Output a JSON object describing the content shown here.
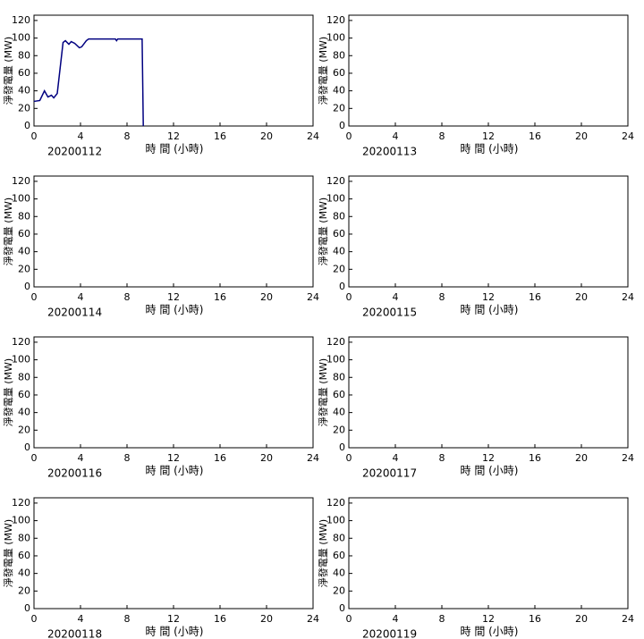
{
  "chart_data": [
    {
      "type": "line",
      "date": "20200112",
      "xlabel": "時 間 (小時)",
      "ylabel": "淨發電量 (MW)",
      "xlim": [
        0,
        24
      ],
      "xticks": [
        0,
        4,
        8,
        12,
        16,
        20,
        24
      ],
      "ylim": [
        0,
        126
      ],
      "yticks": [
        0,
        20,
        40,
        60,
        80,
        100,
        120
      ],
      "color": "#000080",
      "x": [
        0,
        0.5,
        0.9,
        1.2,
        1.5,
        1.7,
        2,
        2.5,
        2.7,
        3,
        3.2,
        3.5,
        3.9,
        4.1,
        4.5,
        4.7,
        7,
        7.1,
        7.2,
        9.3,
        9.4
      ],
      "values": [
        28,
        29,
        40,
        33,
        35,
        32,
        37,
        95,
        97,
        93,
        96,
        94,
        89,
        90,
        97,
        99,
        99,
        97,
        99,
        99,
        0
      ]
    },
    {
      "type": "line",
      "date": "20200113",
      "xlabel": "時 間 (小時)",
      "ylabel": "淨發電量 (MW)",
      "xlim": [
        0,
        24
      ],
      "xticks": [
        0,
        4,
        8,
        12,
        16,
        20,
        24
      ],
      "ylim": [
        0,
        126
      ],
      "yticks": [
        0,
        20,
        40,
        60,
        80,
        100,
        120
      ]
    },
    {
      "type": "line",
      "date": "20200114",
      "xlabel": "時 間 (小時)",
      "ylabel": "淨發電量 (MW)",
      "xlim": [
        0,
        24
      ],
      "xticks": [
        0,
        4,
        8,
        12,
        16,
        20,
        24
      ],
      "ylim": [
        0,
        126
      ],
      "yticks": [
        0,
        20,
        40,
        60,
        80,
        100,
        120
      ]
    },
    {
      "type": "line",
      "date": "20200115",
      "xlabel": "時 間 (小時)",
      "ylabel": "淨發電量 (MW)",
      "xlim": [
        0,
        24
      ],
      "xticks": [
        0,
        4,
        8,
        12,
        16,
        20,
        24
      ],
      "ylim": [
        0,
        126
      ],
      "yticks": [
        0,
        20,
        40,
        60,
        80,
        100,
        120
      ]
    },
    {
      "type": "line",
      "date": "20200116",
      "xlabel": "時 間 (小時)",
      "ylabel": "淨發電量 (MW)",
      "xlim": [
        0,
        24
      ],
      "xticks": [
        0,
        4,
        8,
        12,
        16,
        20,
        24
      ],
      "ylim": [
        0,
        126
      ],
      "yticks": [
        0,
        20,
        40,
        60,
        80,
        100,
        120
      ]
    },
    {
      "type": "line",
      "date": "20200117",
      "xlabel": "時 間 (小時)",
      "ylabel": "淨發電量 (MW)",
      "xlim": [
        0,
        24
      ],
      "xticks": [
        0,
        4,
        8,
        12,
        16,
        20,
        24
      ],
      "ylim": [
        0,
        126
      ],
      "yticks": [
        0,
        20,
        40,
        60,
        80,
        100,
        120
      ]
    },
    {
      "type": "line",
      "date": "20200118",
      "xlabel": "時 間 (小時)",
      "ylabel": "淨發電量 (MW)",
      "xlim": [
        0,
        24
      ],
      "xticks": [
        0,
        4,
        8,
        12,
        16,
        20,
        24
      ],
      "ylim": [
        0,
        126
      ],
      "yticks": [
        0,
        20,
        40,
        60,
        80,
        100,
        120
      ]
    },
    {
      "type": "line",
      "date": "20200119",
      "xlabel": "時 間 (小時)",
      "ylabel": "淨發電量 (MW)",
      "xlim": [
        0,
        24
      ],
      "xticks": [
        0,
        4,
        8,
        12,
        16,
        20,
        24
      ],
      "ylim": [
        0,
        126
      ],
      "yticks": [
        0,
        20,
        40,
        60,
        80,
        100,
        120
      ]
    }
  ]
}
